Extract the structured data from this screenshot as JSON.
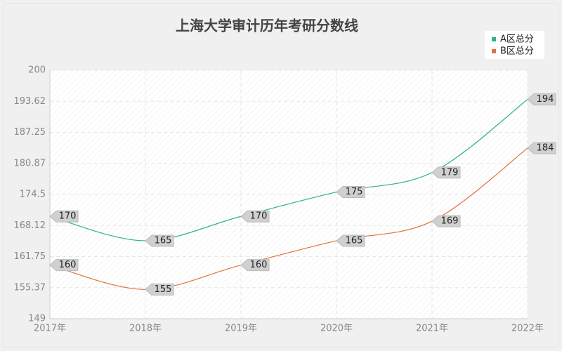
{
  "chart_data": {
    "type": "line",
    "title": "上海大学审计历年考研分数线",
    "categories": [
      "2017年",
      "2018年",
      "2019年",
      "2020年",
      "2021年",
      "2022年"
    ],
    "series": [
      {
        "name": "A区总分",
        "color": "#2bb389",
        "values": [
          170,
          165,
          170,
          175,
          179,
          194
        ]
      },
      {
        "name": "B区总分",
        "color": "#e0703f",
        "values": [
          160,
          155,
          160,
          165,
          169,
          184
        ]
      }
    ],
    "ylim": [
      149,
      200
    ],
    "yticks": [
      149,
      155.37,
      161.75,
      168.12,
      174.5,
      180.87,
      187.25,
      193.62,
      200
    ],
    "grid": true,
    "legend": "top-right"
  }
}
